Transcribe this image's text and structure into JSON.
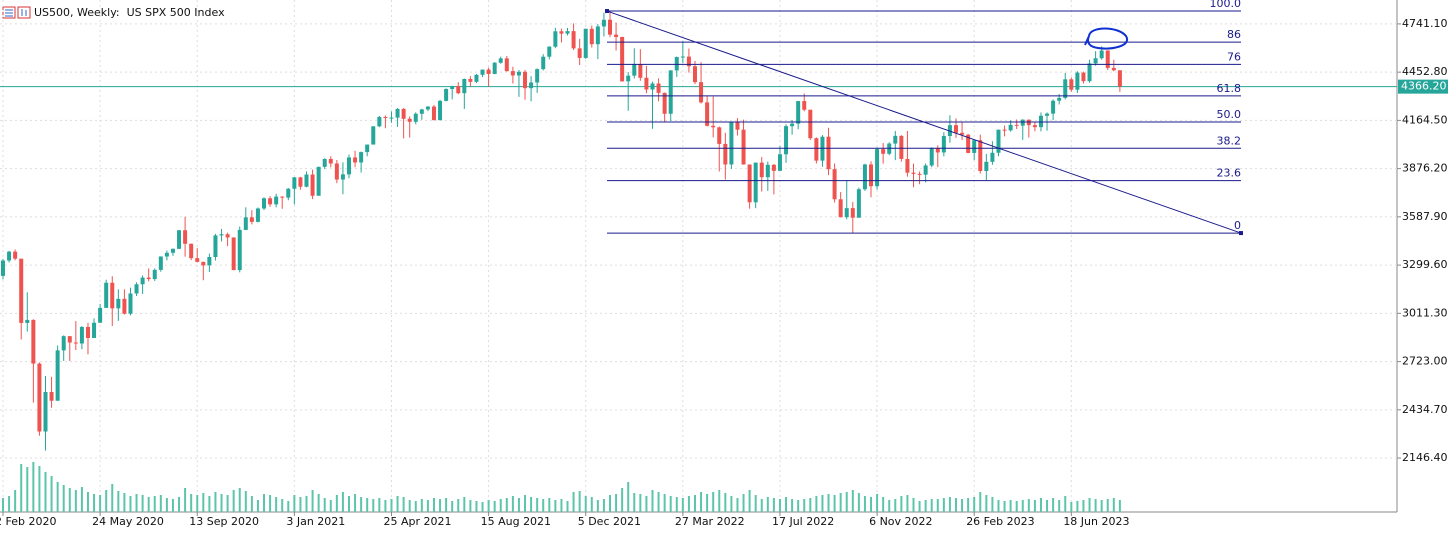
{
  "chart_data": {
    "type": "candlestick",
    "title": "US500, Weekly:  US SPX 500 Index",
    "up_color": "#26a69a",
    "down_color": "#ef5350",
    "volume_color": "#5cc5a9",
    "fib_color": "#1a1a8c",
    "price_line_color": "#26a69a",
    "grid": true,
    "ylim": [
      1824,
      4884
    ],
    "yticks": [
      {
        "value": 2146.4,
        "label": "2146.40"
      },
      {
        "value": 2434.7,
        "label": "2434.70"
      },
      {
        "value": 2723,
        "label": "2723.00"
      },
      {
        "value": 3011.3,
        "label": "3011.30"
      },
      {
        "value": 3299.6,
        "label": "3299.60"
      },
      {
        "value": 3587.9,
        "label": "3587.90"
      },
      {
        "value": 3876.2,
        "label": "3876.20"
      },
      {
        "value": 4164.5,
        "label": "4164.50"
      },
      {
        "value": 4452.8,
        "label": "4452.80"
      },
      {
        "value": 4741.1,
        "label": "4741.10"
      }
    ],
    "last_price_label": "4366.20",
    "categories": [
      "2 Feb 2020",
      null,
      null,
      null,
      null,
      null,
      null,
      null,
      null,
      null,
      null,
      null,
      null,
      null,
      null,
      null,
      "24 May 2020",
      null,
      null,
      null,
      null,
      null,
      null,
      null,
      null,
      null,
      null,
      null,
      null,
      null,
      null,
      null,
      "13 Sep 2020",
      null,
      null,
      null,
      null,
      null,
      null,
      null,
      null,
      null,
      null,
      null,
      null,
      null,
      null,
      null,
      "3 Jan 2021",
      null,
      null,
      null,
      null,
      null,
      null,
      null,
      null,
      null,
      null,
      null,
      null,
      null,
      null,
      null,
      "25 Apr 2021",
      null,
      null,
      null,
      null,
      null,
      null,
      null,
      null,
      null,
      null,
      null,
      null,
      null,
      null,
      null,
      "15 Aug 2021",
      null,
      null,
      null,
      null,
      null,
      null,
      null,
      null,
      null,
      null,
      null,
      null,
      null,
      null,
      null,
      "5 Dec 2021",
      null,
      null,
      null,
      null,
      null,
      null,
      null,
      null,
      null,
      null,
      null,
      null,
      null,
      null,
      null,
      "27 Mar 2022",
      null,
      null,
      null,
      null,
      null,
      null,
      null,
      null,
      null,
      null,
      null,
      null,
      null,
      null,
      null,
      "17 Jul 2022",
      null,
      null,
      null,
      null,
      null,
      null,
      null,
      null,
      null,
      null,
      null,
      null,
      null,
      null,
      null,
      "6 Nov 2022",
      null,
      null,
      null,
      null,
      null,
      null,
      null,
      null,
      null,
      null,
      null,
      null,
      null,
      null,
      null,
      "26 Feb 2023",
      null,
      null,
      null,
      null,
      null,
      null,
      null,
      null,
      null,
      null,
      null,
      null,
      null,
      null,
      null,
      "18 Jun 2023",
      null,
      null,
      null,
      null,
      null,
      null,
      null,
      null
    ],
    "ohlc": [
      [
        3235,
        3337,
        3214,
        3327
      ],
      [
        3327,
        3385,
        3315,
        3380
      ],
      [
        3380,
        3393,
        3328,
        3338
      ],
      [
        3338,
        3338,
        2855,
        2954
      ],
      [
        2954,
        3137,
        2902,
        2972
      ],
      [
        2972,
        2976,
        2478,
        2711
      ],
      [
        2711,
        2718,
        2280,
        2305
      ],
      [
        2305,
        2637,
        2191,
        2541
      ],
      [
        2541,
        2632,
        2447,
        2489
      ],
      [
        2489,
        2819,
        2489,
        2790
      ],
      [
        2790,
        2880,
        2727,
        2875
      ],
      [
        2875,
        2875,
        2727,
        2837
      ],
      [
        2837,
        2965,
        2792,
        2831
      ],
      [
        2831,
        2935,
        2797,
        2930
      ],
      [
        2930,
        2955,
        2766,
        2864
      ],
      [
        2864,
        2981,
        2864,
        2955
      ],
      [
        2955,
        3068,
        2955,
        3044
      ],
      [
        3044,
        3212,
        3044,
        3194
      ],
      [
        3194,
        3233,
        2936,
        3041
      ],
      [
        3041,
        3155,
        2966,
        3098
      ],
      [
        3098,
        3155,
        3004,
        3009
      ],
      [
        3009,
        3165,
        2999,
        3130
      ],
      [
        3130,
        3197,
        3115,
        3185
      ],
      [
        3185,
        3238,
        3127,
        3225
      ],
      [
        3225,
        3280,
        3202,
        3216
      ],
      [
        3216,
        3280,
        3205,
        3271
      ],
      [
        3271,
        3352,
        3260,
        3351
      ],
      [
        3351,
        3387,
        3328,
        3373
      ],
      [
        3373,
        3399,
        3355,
        3397
      ],
      [
        3397,
        3509,
        3395,
        3508
      ],
      [
        3508,
        3588,
        3350,
        3427
      ],
      [
        3427,
        3429,
        3329,
        3341
      ],
      [
        3341,
        3401,
        3315,
        3319
      ],
      [
        3319,
        3320,
        3209,
        3298
      ],
      [
        3298,
        3368,
        3258,
        3348
      ],
      [
        3348,
        3486,
        3327,
        3477
      ],
      [
        3477,
        3516,
        3441,
        3484
      ],
      [
        3484,
        3493,
        3413,
        3465
      ],
      [
        3465,
        3465,
        3269,
        3270
      ],
      [
        3270,
        3530,
        3256,
        3510
      ],
      [
        3510,
        3645,
        3509,
        3585
      ],
      [
        3585,
        3628,
        3543,
        3558
      ],
      [
        3558,
        3644,
        3555,
        3638
      ],
      [
        3638,
        3705,
        3628,
        3699
      ],
      [
        3699,
        3712,
        3648,
        3663
      ],
      [
        3663,
        3726,
        3645,
        3709
      ],
      [
        3709,
        3711,
        3636,
        3703
      ],
      [
        3703,
        3760,
        3687,
        3756
      ],
      [
        3756,
        3826,
        3662,
        3824
      ],
      [
        3824,
        3827,
        3750,
        3768
      ],
      [
        3768,
        3859,
        3765,
        3841
      ],
      [
        3841,
        3870,
        3694,
        3714
      ],
      [
        3714,
        3887,
        3714,
        3887
      ],
      [
        3887,
        3938,
        3874,
        3934
      ],
      [
        3934,
        3950,
        3884,
        3907
      ],
      [
        3907,
        3928,
        3789,
        3811
      ],
      [
        3811,
        3914,
        3723,
        3842
      ],
      [
        3842,
        3960,
        3819,
        3943
      ],
      [
        3943,
        3983,
        3885,
        3913
      ],
      [
        3913,
        3978,
        3853,
        3975
      ],
      [
        3975,
        4020,
        3950,
        4020
      ],
      [
        4020,
        4130,
        4020,
        4129
      ],
      [
        4129,
        4191,
        4124,
        4185
      ],
      [
        4185,
        4194,
        4118,
        4180
      ],
      [
        4180,
        4218,
        4150,
        4181
      ],
      [
        4181,
        4238,
        4126,
        4233
      ],
      [
        4233,
        4238,
        4057,
        4174
      ],
      [
        4174,
        4188,
        4062,
        4156
      ],
      [
        4156,
        4213,
        4141,
        4204
      ],
      [
        4204,
        4234,
        4168,
        4230
      ],
      [
        4230,
        4250,
        4220,
        4247
      ],
      [
        4247,
        4257,
        4164,
        4166
      ],
      [
        4166,
        4287,
        4165,
        4281
      ],
      [
        4281,
        4356,
        4278,
        4352
      ],
      [
        4352,
        4372,
        4290,
        4370
      ],
      [
        4370,
        4393,
        4321,
        4327
      ],
      [
        4327,
        4415,
        4233,
        4412
      ],
      [
        4412,
        4429,
        4367,
        4395
      ],
      [
        4395,
        4442,
        4387,
        4437
      ],
      [
        4437,
        4469,
        4424,
        4468
      ],
      [
        4468,
        4480,
        4367,
        4442
      ],
      [
        4442,
        4513,
        4440,
        4509
      ],
      [
        4509,
        4546,
        4503,
        4535
      ],
      [
        4535,
        4549,
        4456,
        4459
      ],
      [
        4459,
        4485,
        4385,
        4433
      ],
      [
        4433,
        4466,
        4305,
        4455
      ],
      [
        4455,
        4466,
        4288,
        4357
      ],
      [
        4357,
        4429,
        4278,
        4391
      ],
      [
        4391,
        4475,
        4329,
        4471
      ],
      [
        4471,
        4560,
        4463,
        4545
      ],
      [
        4545,
        4608,
        4529,
        4605
      ],
      [
        4605,
        4718,
        4596,
        4697
      ],
      [
        4697,
        4713,
        4630,
        4683
      ],
      [
        4683,
        4717,
        4672,
        4698
      ],
      [
        4698,
        4744,
        4585,
        4595
      ],
      [
        4595,
        4652,
        4495,
        4538
      ],
      [
        4538,
        4713,
        4532,
        4712
      ],
      [
        4712,
        4731,
        4600,
        4620
      ],
      [
        4620,
        4740,
        4531,
        4726
      ],
      [
        4726,
        4808,
        4666,
        4766
      ],
      [
        4766,
        4818,
        4662,
        4677
      ],
      [
        4677,
        4749,
        4582,
        4663
      ],
      [
        4663,
        4665,
        4395,
        4398
      ],
      [
        4398,
        4453,
        4222,
        4432
      ],
      [
        4432,
        4595,
        4415,
        4501
      ],
      [
        4501,
        4590,
        4401,
        4419
      ],
      [
        4419,
        4490,
        4327,
        4349
      ],
      [
        4349,
        4396,
        4114,
        4385
      ],
      [
        4385,
        4416,
        4279,
        4329
      ],
      [
        4329,
        4331,
        4157,
        4204
      ],
      [
        4204,
        4465,
        4161,
        4463
      ],
      [
        4463,
        4546,
        4424,
        4543
      ],
      [
        4543,
        4637,
        4506,
        4546
      ],
      [
        4546,
        4594,
        4450,
        4488
      ],
      [
        4488,
        4520,
        4381,
        4393
      ],
      [
        4393,
        4513,
        4265,
        4272
      ],
      [
        4272,
        4308,
        4128,
        4132
      ],
      [
        4132,
        4307,
        4063,
        4123
      ],
      [
        4123,
        4128,
        3859,
        4024
      ],
      [
        4024,
        4091,
        3811,
        3901
      ],
      [
        3901,
        4158,
        3875,
        4158
      ],
      [
        4158,
        4178,
        4074,
        4109
      ],
      [
        4109,
        4169,
        3900,
        3901
      ],
      [
        3901,
        3901,
        3637,
        3675
      ],
      [
        3675,
        3913,
        3640,
        3912
      ],
      [
        3912,
        3946,
        3739,
        3825
      ],
      [
        3825,
        3918,
        3743,
        3899
      ],
      [
        3899,
        3904,
        3722,
        3863
      ],
      [
        3863,
        4012,
        3863,
        3962
      ],
      [
        3962,
        4141,
        3911,
        4130
      ],
      [
        4130,
        4167,
        4079,
        4145
      ],
      [
        4145,
        4281,
        4112,
        4280
      ],
      [
        4280,
        4325,
        4218,
        4228
      ],
      [
        4228,
        4229,
        4047,
        4058
      ],
      [
        4058,
        4062,
        3907,
        3924
      ],
      [
        3924,
        4077,
        3887,
        4067
      ],
      [
        4067,
        4120,
        3837,
        3873
      ],
      [
        3873,
        3907,
        3674,
        3693
      ],
      [
        3693,
        3736,
        3584,
        3586
      ],
      [
        3586,
        3807,
        3573,
        3640
      ],
      [
        3640,
        3677,
        3491,
        3583
      ],
      [
        3583,
        3763,
        3583,
        3753
      ],
      [
        3753,
        3905,
        3743,
        3901
      ],
      [
        3901,
        3920,
        3705,
        3771
      ],
      [
        3771,
        4003,
        3751,
        3993
      ],
      [
        3993,
        4029,
        3906,
        3965
      ],
      [
        3965,
        4034,
        3956,
        4026
      ],
      [
        4026,
        4101,
        3927,
        4072
      ],
      [
        4072,
        4076,
        3918,
        3934
      ],
      [
        3934,
        4101,
        3828,
        3852
      ],
      [
        3852,
        3906,
        3765,
        3845
      ],
      [
        3845,
        3859,
        3783,
        3840
      ],
      [
        3840,
        3907,
        3794,
        3895
      ],
      [
        3895,
        4004,
        3885,
        3999
      ],
      [
        3999,
        4015,
        3885,
        3973
      ],
      [
        3973,
        4094,
        3949,
        4071
      ],
      [
        4071,
        4195,
        4031,
        4136
      ],
      [
        4136,
        4176,
        4060,
        4090
      ],
      [
        4090,
        4156,
        4047,
        4079
      ],
      [
        4079,
        4084,
        3968,
        3970
      ],
      [
        3970,
        4049,
        3928,
        4046
      ],
      [
        4046,
        4079,
        3847,
        3862
      ],
      [
        3862,
        3964,
        3808,
        3917
      ],
      [
        3917,
        4040,
        3899,
        3971
      ],
      [
        3971,
        4110,
        3950,
        4109
      ],
      [
        4109,
        4134,
        4069,
        4105
      ],
      [
        4105,
        4164,
        4097,
        4138
      ],
      [
        4138,
        4170,
        4113,
        4133
      ],
      [
        4133,
        4171,
        4048,
        4169
      ],
      [
        4169,
        4170,
        4062,
        4136
      ],
      [
        4136,
        4154,
        4099,
        4124
      ],
      [
        4124,
        4212,
        4099,
        4192
      ],
      [
        4192,
        4212,
        4103,
        4205
      ],
      [
        4205,
        4290,
        4166,
        4282
      ],
      [
        4282,
        4322,
        4260,
        4299
      ],
      [
        4299,
        4448,
        4290,
        4410
      ],
      [
        4410,
        4421,
        4336,
        4348
      ],
      [
        4348,
        4458,
        4328,
        4450
      ],
      [
        4450,
        4456,
        4385,
        4399
      ],
      [
        4399,
        4527,
        4389,
        4505
      ],
      [
        4505,
        4578,
        4491,
        4536
      ],
      [
        4536,
        4607,
        4527,
        4582
      ],
      [
        4582,
        4584,
        4466,
        4478
      ],
      [
        4478,
        4527,
        4458,
        4464
      ],
      [
        4464,
        4464,
        4335,
        4366.2
      ]
    ],
    "volume": [
      14,
      16,
      22,
      48,
      45,
      50,
      46,
      40,
      36,
      30,
      27,
      24,
      22,
      25,
      20,
      18,
      17,
      22,
      28,
      21,
      19,
      16,
      18,
      17,
      15,
      16,
      17,
      14,
      13,
      15,
      24,
      18,
      17,
      19,
      16,
      20,
      18,
      17,
      22,
      24,
      21,
      16,
      12,
      18,
      17,
      15,
      13,
      11,
      17,
      15,
      16,
      22,
      18,
      14,
      12,
      17,
      20,
      16,
      18,
      15,
      14,
      13,
      14,
      12,
      13,
      16,
      15,
      12,
      11,
      13,
      12,
      14,
      13,
      14,
      11,
      13,
      15,
      12,
      11,
      10,
      12,
      11,
      13,
      14,
      16,
      14,
      17,
      15,
      14,
      13,
      14,
      12,
      13,
      11,
      20,
      21,
      16,
      15,
      12,
      13,
      17,
      18,
      24,
      30,
      19,
      18,
      16,
      22,
      20,
      18,
      16,
      15,
      14,
      16,
      17,
      20,
      18,
      20,
      22,
      19,
      16,
      14,
      18,
      22,
      17,
      13,
      15,
      14,
      13,
      15,
      13,
      12,
      13,
      14,
      16,
      17,
      18,
      17,
      19,
      20,
      22,
      19,
      16,
      15,
      18,
      15,
      12,
      13,
      16,
      17,
      14,
      11,
      12,
      13,
      13,
      14,
      15,
      14,
      13,
      14,
      15,
      20,
      17,
      15,
      12,
      11,
      12,
      11,
      12,
      13,
      12,
      14,
      12,
      14,
      12,
      16,
      10,
      11,
      12,
      14,
      13,
      12,
      13,
      14,
      12
    ],
    "fib": {
      "high": 4818,
      "low": 3491,
      "levels": [
        {
          "value": 100,
          "label": "100.0"
        },
        86,
        76,
        61.8,
        {
          "value": 50,
          "label": "50.0"
        },
        38.2,
        23.6,
        0
      ]
    }
  }
}
